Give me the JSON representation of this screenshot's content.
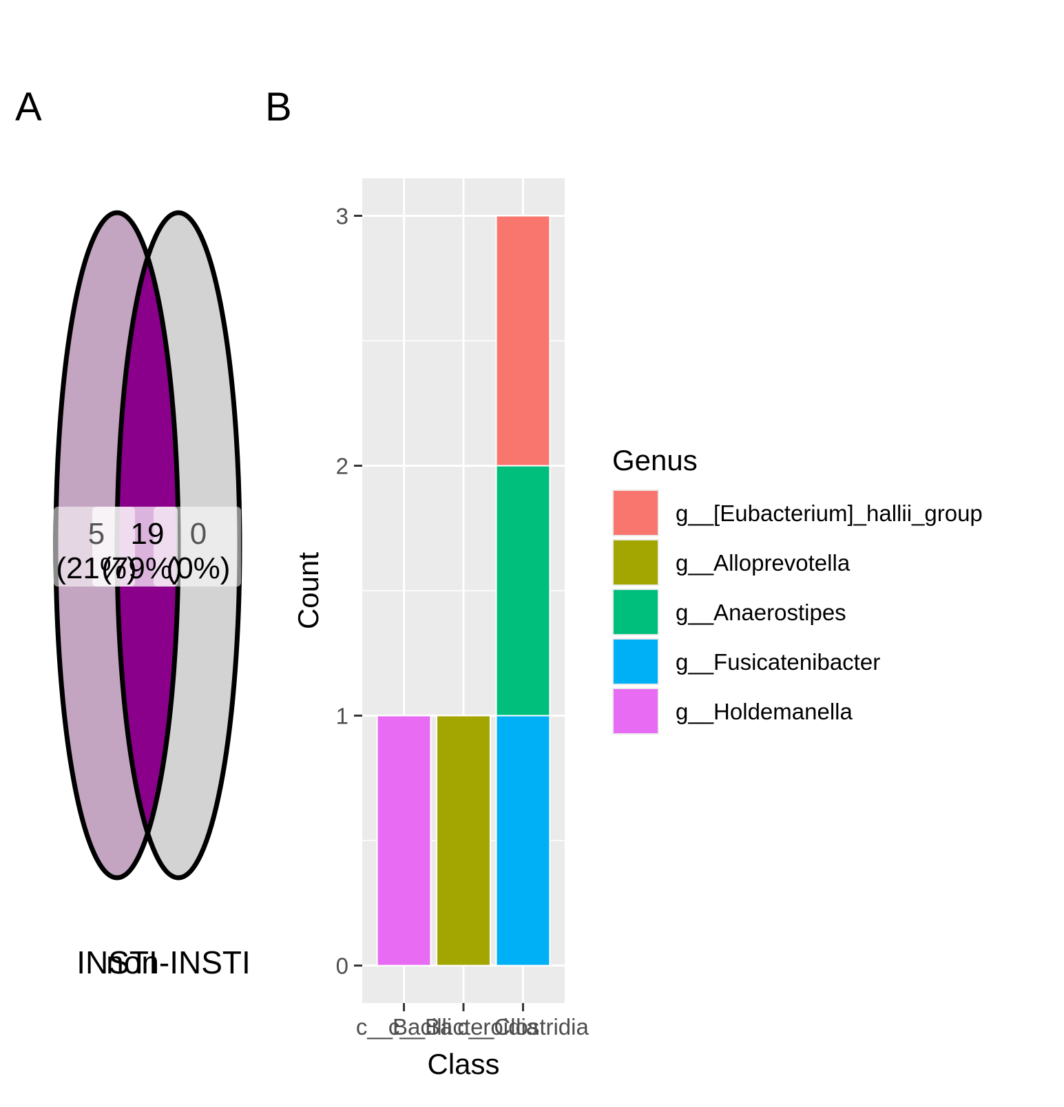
{
  "chart_data": [
    {
      "type": "venn",
      "panel_label": "A",
      "sets": [
        {
          "name": "INSTI",
          "color": "#C4A5C1"
        },
        {
          "name": "non-INSTI",
          "color": "#D3D3D3"
        }
      ],
      "overlap_color": "#8B008B",
      "regions": [
        {
          "count": "5",
          "percent": "(21%)"
        },
        {
          "count": "19",
          "percent": "(79%)"
        },
        {
          "count": "0",
          "percent": "(0%)"
        }
      ]
    },
    {
      "type": "bar",
      "panel_label": "B",
      "xlabel": "Class",
      "ylabel": "Count",
      "ylim": [
        -0.15,
        3.15
      ],
      "yticks": [
        0,
        1,
        2,
        3
      ],
      "categories": [
        "c__Bacilli",
        "c__Bacteroidia",
        "c__Clostridia"
      ],
      "legend_title": "Genus",
      "legend_position": "right",
      "series": [
        {
          "name": "g__[Eubacterium]_hallii_group",
          "color": "#F8766D",
          "values": [
            0,
            0,
            1
          ]
        },
        {
          "name": "g__Alloprevotella",
          "color": "#A3A500",
          "values": [
            0,
            1,
            0
          ]
        },
        {
          "name": "g__Anaerostipes",
          "color": "#00BF7D",
          "values": [
            0,
            0,
            1
          ]
        },
        {
          "name": "g__Fusicatenibacter",
          "color": "#00B0F6",
          "values": [
            0,
            0,
            1
          ]
        },
        {
          "name": "g__Holdemanella",
          "color": "#E76BF3",
          "values": [
            1,
            0,
            0
          ]
        }
      ],
      "stack_order_bottom_to_top": [
        "g__Holdemanella",
        "g__Alloprevotella",
        "g__Fusicatenibacter",
        "g__Anaerostipes",
        "g__[Eubacterium]_hallii_group"
      ],
      "grid": true,
      "panel_background": "#EBEBEB"
    }
  ]
}
